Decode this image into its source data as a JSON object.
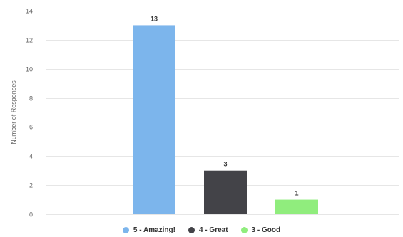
{
  "chart_data": {
    "type": "bar",
    "title": "",
    "xlabel": "",
    "ylabel": "Number of Responses",
    "ylim": [
      0,
      14
    ],
    "y_ticks": [
      0,
      2,
      4,
      6,
      8,
      10,
      12,
      14
    ],
    "grid": true,
    "legend_position": "bottom",
    "series": [
      {
        "name": "5 - Amazing!",
        "value": 13,
        "data_label": "13",
        "color": "#7cb5ec"
      },
      {
        "name": "4 - Great",
        "value": 3,
        "data_label": "3",
        "color": "#434348"
      },
      {
        "name": "3 - Good",
        "value": 1,
        "data_label": "1",
        "color": "#90ed7d"
      }
    ]
  }
}
